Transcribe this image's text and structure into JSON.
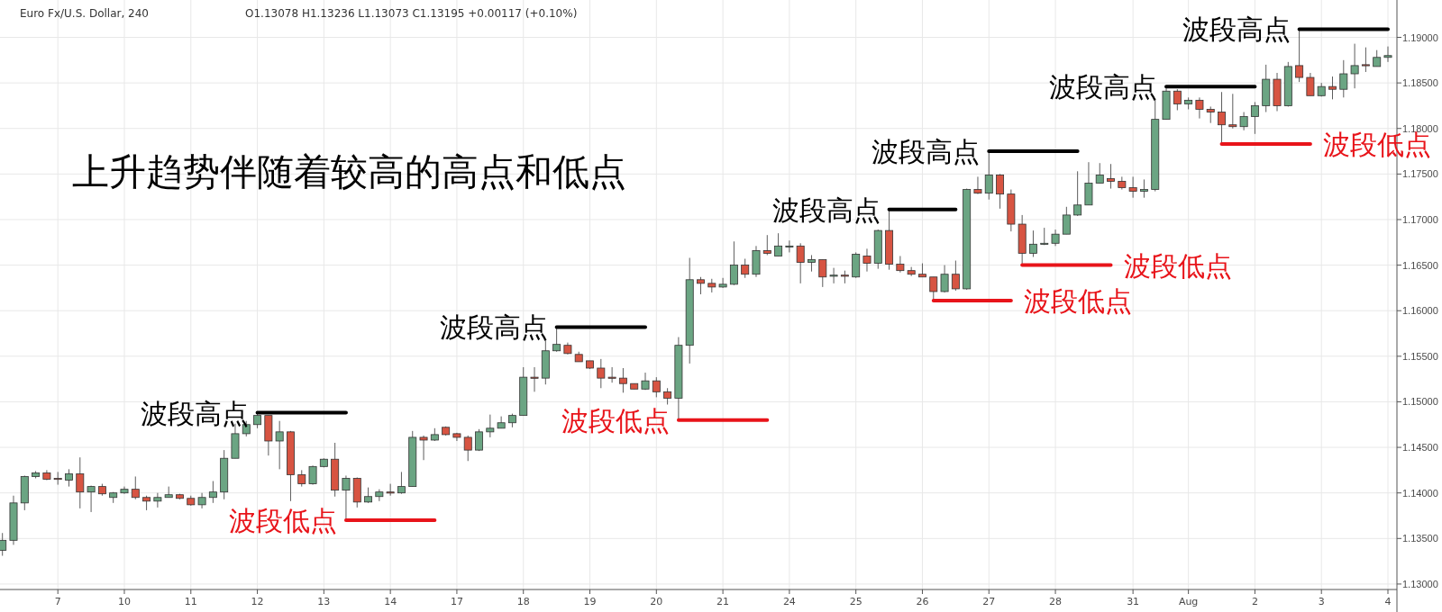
{
  "chart_data": {
    "type": "candlestick",
    "title": "上升趋势伴随着较高的高点和低点",
    "subtitle": "Euro Fx/U.S. Dollar, 240",
    "annotations": [
      "O1.13078 H1.13236 L1.13073 C1.13195 +0.00117 (+0.10%)",
      "波段高点",
      "波段低点",
      "波段高点",
      "波段低点",
      "波段高点",
      "波段低点",
      "波段高点",
      "波段低点",
      "波段高点",
      "波段低点",
      "波段高点"
    ],
    "categories": [
      null,
      null,
      null,
      null,
      null,
      "7",
      null,
      null,
      null,
      null,
      null,
      "10",
      null,
      null,
      null,
      null,
      null,
      "11",
      null,
      null,
      null,
      null,
      null,
      "12",
      null,
      null,
      null,
      null,
      null,
      "13",
      null,
      null,
      null,
      null,
      null,
      "14",
      null,
      null,
      null,
      null,
      null,
      "17",
      null,
      null,
      null,
      null,
      null,
      "18",
      null,
      null,
      null,
      null,
      null,
      "19",
      null,
      null,
      null,
      null,
      null,
      "20",
      null,
      null,
      null,
      null,
      null,
      "21",
      null,
      null,
      null,
      null,
      null,
      "24",
      null,
      null,
      null,
      null,
      null,
      "25",
      null,
      null,
      null,
      null,
      null,
      "26",
      null,
      null,
      null,
      null,
      null,
      "27",
      null,
      null,
      null,
      null,
      null,
      "28",
      null,
      null,
      null,
      null,
      null,
      null,
      "31",
      null,
      null,
      null,
      null,
      "Aug",
      null,
      null,
      null,
      null,
      null,
      "2",
      null,
      null,
      null,
      null,
      null,
      "3",
      null,
      null,
      null,
      null,
      null,
      "4"
    ],
    "ohlc": [
      [
        1.1337,
        1.1356,
        1.1331,
        1.1348
      ],
      [
        1.1348,
        1.1397,
        1.1343,
        1.1389
      ],
      [
        1.1389,
        1.1419,
        1.1381,
        1.1418
      ],
      [
        1.1418,
        1.1424,
        1.1416,
        1.1422
      ],
      [
        1.1422,
        1.1425,
        1.1414,
        1.1415
      ],
      [
        1.1416,
        1.1423,
        1.1409,
        1.1415
      ],
      [
        1.1414,
        1.1426,
        1.1407,
        1.1421
      ],
      [
        1.1421,
        1.1439,
        1.1383,
        1.1401
      ],
      [
        1.1401,
        1.1408,
        1.1379,
        1.1407
      ],
      [
        1.1407,
        1.141,
        1.1397,
        1.1399
      ],
      [
        1.1395,
        1.1401,
        1.1389,
        1.14
      ],
      [
        1.14,
        1.1407,
        1.1399,
        1.1404
      ],
      [
        1.1404,
        1.1418,
        1.1393,
        1.1395
      ],
      [
        1.1395,
        1.1397,
        1.1381,
        1.1391
      ],
      [
        1.1391,
        1.14,
        1.1384,
        1.1395
      ],
      [
        1.1395,
        1.1407,
        1.1395,
        1.1398
      ],
      [
        1.1398,
        1.1399,
        1.1393,
        1.1394
      ],
      [
        1.1394,
        1.1397,
        1.1386,
        1.1387
      ],
      [
        1.1387,
        1.14,
        1.1383,
        1.1395
      ],
      [
        1.1395,
        1.1413,
        1.1389,
        1.1401
      ],
      [
        1.1401,
        1.1447,
        1.1393,
        1.1438
      ],
      [
        1.1438,
        1.1476,
        1.1438,
        1.1465
      ],
      [
        1.1465,
        1.1479,
        1.1462,
        1.1475
      ],
      [
        1.1475,
        1.1488,
        1.1471,
        1.1485
      ],
      [
        1.1485,
        1.1485,
        1.1441,
        1.1457
      ],
      [
        1.1457,
        1.1479,
        1.1426,
        1.1467
      ],
      [
        1.1467,
        1.1468,
        1.1391,
        1.142
      ],
      [
        1.142,
        1.1425,
        1.1407,
        1.141
      ],
      [
        1.141,
        1.143,
        1.1409,
        1.1429
      ],
      [
        1.1429,
        1.1438,
        1.1428,
        1.1437
      ],
      [
        1.1437,
        1.1455,
        1.1396,
        1.1403
      ],
      [
        1.1403,
        1.1419,
        1.137,
        1.1416
      ],
      [
        1.1416,
        1.1417,
        1.1384,
        1.139
      ],
      [
        1.139,
        1.1406,
        1.1389,
        1.1396
      ],
      [
        1.1396,
        1.1404,
        1.1391,
        1.1401
      ],
      [
        1.1401,
        1.141,
        1.1397,
        1.14
      ],
      [
        1.14,
        1.1423,
        1.1399,
        1.1407
      ],
      [
        1.1407,
        1.1468,
        1.1407,
        1.1461
      ],
      [
        1.1461,
        1.1463,
        1.1436,
        1.1458
      ],
      [
        1.1458,
        1.1471,
        1.1457,
        1.1464
      ],
      [
        1.1472,
        1.1473,
        1.1463,
        1.1464
      ],
      [
        1.1465,
        1.1466,
        1.1457,
        1.1461
      ],
      [
        1.1461,
        1.1463,
        1.1435,
        1.1447
      ],
      [
        1.1447,
        1.147,
        1.1446,
        1.1467
      ],
      [
        1.1467,
        1.1486,
        1.1461,
        1.1471
      ],
      [
        1.1471,
        1.1484,
        1.1471,
        1.1477
      ],
      [
        1.1477,
        1.1487,
        1.1472,
        1.1485
      ],
      [
        1.1485,
        1.1538,
        1.1485,
        1.1527
      ],
      [
        1.1527,
        1.1538,
        1.1511,
        1.1526
      ],
      [
        1.1526,
        1.1567,
        1.1519,
        1.1556
      ],
      [
        1.1556,
        1.1582,
        1.1555,
        1.1563
      ],
      [
        1.1562,
        1.1565,
        1.1552,
        1.1553
      ],
      [
        1.1552,
        1.1555,
        1.1544,
        1.1544
      ],
      [
        1.1545,
        1.1545,
        1.1536,
        1.1537
      ],
      [
        1.1537,
        1.1547,
        1.1515,
        1.1526
      ],
      [
        1.1527,
        1.1538,
        1.1521,
        1.1526
      ],
      [
        1.1526,
        1.1537,
        1.151,
        1.152
      ],
      [
        1.152,
        1.152,
        1.1514,
        1.1514
      ],
      [
        1.1514,
        1.1532,
        1.1513,
        1.1523
      ],
      [
        1.1523,
        1.1527,
        1.1505,
        1.1511
      ],
      [
        1.1511,
        1.1515,
        1.1497,
        1.1504
      ],
      [
        1.1504,
        1.1571,
        1.148,
        1.1562
      ],
      [
        1.1562,
        1.1658,
        1.1542,
        1.1634
      ],
      [
        1.1634,
        1.1637,
        1.1618,
        1.163
      ],
      [
        1.163,
        1.1635,
        1.162,
        1.1626
      ],
      [
        1.1626,
        1.1636,
        1.1625,
        1.1629
      ],
      [
        1.1629,
        1.1676,
        1.1628,
        1.165
      ],
      [
        1.165,
        1.1657,
        1.1636,
        1.164
      ],
      [
        1.164,
        1.1671,
        1.1637,
        1.1666
      ],
      [
        1.1666,
        1.1683,
        1.1661,
        1.1663
      ],
      [
        1.166,
        1.1685,
        1.166,
        1.1671
      ],
      [
        1.167,
        1.1677,
        1.1664,
        1.1671
      ],
      [
        1.1671,
        1.1674,
        1.163,
        1.1653
      ],
      [
        1.1653,
        1.1661,
        1.1643,
        1.1656
      ],
      [
        1.1656,
        1.1656,
        1.1626,
        1.1637
      ],
      [
        1.1638,
        1.1647,
        1.163,
        1.1639
      ],
      [
        1.1639,
        1.1644,
        1.163,
        1.1638
      ],
      [
        1.1637,
        1.1664,
        1.1636,
        1.1662
      ],
      [
        1.166,
        1.1668,
        1.1643,
        1.1652
      ],
      [
        1.1652,
        1.1689,
        1.1646,
        1.1688
      ],
      [
        1.1688,
        1.1711,
        1.1645,
        1.1651
      ],
      [
        1.1651,
        1.166,
        1.1642,
        1.1644
      ],
      [
        1.1644,
        1.1648,
        1.1638,
        1.164
      ],
      [
        1.164,
        1.1652,
        1.1637,
        1.1637
      ],
      [
        1.1637,
        1.1637,
        1.1611,
        1.1621
      ],
      [
        1.1621,
        1.165,
        1.162,
        1.164
      ],
      [
        1.164,
        1.1655,
        1.1622,
        1.1624
      ],
      [
        1.1624,
        1.1734,
        1.1623,
        1.1733
      ],
      [
        1.1733,
        1.1747,
        1.1728,
        1.1729
      ],
      [
        1.1729,
        1.1775,
        1.1722,
        1.1749
      ],
      [
        1.1749,
        1.175,
        1.1712,
        1.1728
      ],
      [
        1.1728,
        1.1733,
        1.1687,
        1.1695
      ],
      [
        1.1695,
        1.1705,
        1.165,
        1.1663
      ],
      [
        1.1663,
        1.1688,
        1.1659,
        1.1673
      ],
      [
        1.1673,
        1.1691,
        1.1672,
        1.1674
      ],
      [
        1.1674,
        1.1689,
        1.1671,
        1.1684
      ],
      [
        1.1684,
        1.1714,
        1.1684,
        1.1705
      ],
      [
        1.1705,
        1.1753,
        1.1704,
        1.1716
      ],
      [
        1.1716,
        1.1763,
        1.1716,
        1.174
      ],
      [
        1.174,
        1.1762,
        1.174,
        1.1749
      ],
      [
        1.1745,
        1.1761,
        1.1734,
        1.1742
      ],
      [
        1.1742,
        1.1747,
        1.1733,
        1.1735
      ],
      [
        1.1735,
        1.1747,
        1.1724,
        1.1731
      ],
      [
        1.1731,
        1.1744,
        1.1724,
        1.1733
      ],
      [
        1.1733,
        1.1833,
        1.1731,
        1.181
      ],
      [
        1.181,
        1.1846,
        1.181,
        1.1841
      ],
      [
        1.1841,
        1.1843,
        1.182,
        1.1827
      ],
      [
        1.1827,
        1.1834,
        1.1821,
        1.1831
      ],
      [
        1.1831,
        1.1834,
        1.1811,
        1.1821
      ],
      [
        1.1821,
        1.1824,
        1.1806,
        1.1818
      ],
      [
        1.1818,
        1.184,
        1.1783,
        1.1804
      ],
      [
        1.1804,
        1.1838,
        1.18,
        1.1802
      ],
      [
        1.1802,
        1.1818,
        1.1798,
        1.1813
      ],
      [
        1.1813,
        1.1829,
        1.1794,
        1.1825
      ],
      [
        1.1825,
        1.187,
        1.1818,
        1.1854
      ],
      [
        1.1854,
        1.1861,
        1.1819,
        1.1825
      ],
      [
        1.1825,
        1.1873,
        1.1824,
        1.1868
      ],
      [
        1.1869,
        1.1909,
        1.1851,
        1.1856
      ],
      [
        1.1856,
        1.1861,
        1.1836,
        1.1836
      ],
      [
        1.1836,
        1.185,
        1.1835,
        1.1846
      ],
      [
        1.1846,
        1.1857,
        1.1832,
        1.1843
      ],
      [
        1.1843,
        1.1875,
        1.1834,
        1.186
      ],
      [
        1.186,
        1.1893,
        1.1844,
        1.1869
      ],
      [
        1.187,
        1.1889,
        1.1862,
        1.1869
      ],
      [
        1.1868,
        1.1886,
        1.1868,
        1.1878
      ],
      [
        1.1878,
        1.189,
        1.1873,
        1.188
      ]
    ],
    "colors": [
      "#6ba583",
      "#6ba583",
      "#6ba583",
      "#6ba583",
      "#d75442",
      "#d75442",
      "#6ba583",
      "#d75442",
      "#6ba583",
      "#d75442",
      "#6ba583",
      "#6ba583",
      "#d75442",
      "#d75442",
      "#6ba583",
      "#6ba583",
      "#d75442",
      "#d75442",
      "#6ba583",
      "#6ba583",
      "#6ba583",
      "#6ba583",
      "#6ba583",
      "#6ba583",
      "#d75442",
      "#6ba583",
      "#d75442",
      "#d75442",
      "#6ba583",
      "#6ba583",
      "#d75442",
      "#6ba583",
      "#d75442",
      "#6ba583",
      "#6ba583",
      "#d75442",
      "#6ba583",
      "#6ba583",
      "#d75442",
      "#6ba583",
      "#d75442",
      "#d75442",
      "#d75442",
      "#6ba583",
      "#6ba583",
      "#6ba583",
      "#6ba583",
      "#6ba583",
      "#d75442",
      "#6ba583",
      "#6ba583",
      "#d75442",
      "#d75442",
      "#d75442",
      "#d75442",
      "#d75442",
      "#d75442",
      "#d75442",
      "#6ba583",
      "#d75442",
      "#d75442",
      "#6ba583",
      "#6ba583",
      "#d75442",
      "#d75442",
      "#6ba583",
      "#6ba583",
      "#d75442",
      "#6ba583",
      "#d75442",
      "#6ba583",
      "#6ba583",
      "#d75442",
      "#6ba583",
      "#d75442",
      "#6ba583",
      "#d75442",
      "#6ba583",
      "#d75442",
      "#6ba583",
      "#d75442",
      "#d75442",
      "#d75442",
      "#d75442",
      "#d75442",
      "#6ba583",
      "#d75442",
      "#6ba583",
      "#d75442",
      "#6ba583",
      "#d75442",
      "#d75442",
      "#d75442",
      "#6ba583",
      "#6ba583",
      "#6ba583",
      "#6ba583",
      "#6ba583",
      "#6ba583",
      "#6ba583",
      "#d75442",
      "#d75442",
      "#d75442",
      "#6ba583",
      "#6ba583",
      "#6ba583",
      "#d75442",
      "#6ba583",
      "#d75442",
      "#d75442",
      "#d75442",
      "#d75442",
      "#6ba583",
      "#6ba583",
      "#6ba583",
      "#d75442",
      "#6ba583",
      "#d75442",
      "#d75442",
      "#6ba583",
      "#d75442",
      "#6ba583",
      "#6ba583",
      "#d75442",
      "#6ba583",
      "#6ba583"
    ],
    "series": [
      {
        "type": "line",
        "color": "#000000",
        "values": [
          null,
          null,
          null,
          null,
          null,
          null,
          null,
          null,
          null,
          null,
          null,
          null,
          null,
          null,
          null,
          null,
          null,
          null,
          null,
          null,
          null,
          null,
          null,
          1.1488,
          1.1488,
          1.1488,
          1.1488,
          1.1488,
          1.1488,
          1.1488,
          1.1488,
          1.1488,
          null,
          null,
          null,
          null,
          null,
          null,
          null,
          null,
          null,
          null,
          null,
          null,
          null,
          null,
          null,
          null,
          null,
          null,
          null,
          null,
          null,
          null,
          null,
          null,
          null,
          null,
          null,
          null,
          null,
          null,
          null,
          null,
          null,
          null,
          null,
          null,
          null,
          null,
          null,
          null,
          null,
          null,
          null,
          null,
          null,
          null,
          null,
          null,
          1.1711,
          1.1711,
          1.1711,
          1.1711,
          1.1711,
          1.1711,
          1.1711,
          null,
          null,
          null,
          null,
          null,
          null,
          null,
          null,
          null,
          null,
          null,
          null,
          null,
          null,
          null,
          null,
          null,
          null,
          1.1846,
          1.1846,
          1.1846,
          1.1846,
          1.1846,
          1.1846,
          1.1846,
          1.1846,
          1.1846,
          null,
          null,
          null,
          null,
          null,
          null,
          null,
          null,
          null,
          null,
          null,
          null
        ]
      },
      {
        "type": "line",
        "color": "#000000",
        "values": [
          null,
          null,
          null,
          null,
          null,
          null,
          null,
          null,
          null,
          null,
          null,
          null,
          null,
          null,
          null,
          null,
          null,
          null,
          null,
          null,
          null,
          null,
          null,
          null,
          null,
          null,
          null,
          null,
          null,
          null,
          null,
          null,
          null,
          null,
          null,
          null,
          null,
          null,
          null,
          null,
          null,
          null,
          null,
          null,
          null,
          null,
          null,
          null,
          null,
          null,
          1.1582,
          1.1582,
          1.1582,
          1.1582,
          1.1582,
          1.1582,
          1.1582,
          1.1582,
          1.1582,
          null,
          null,
          null,
          null,
          null,
          null,
          null,
          null,
          null,
          null,
          null,
          null,
          null,
          null,
          null,
          null,
          null,
          null,
          null,
          null,
          null,
          null,
          null,
          null,
          null,
          null,
          null,
          null,
          null,
          null,
          1.1775,
          1.1775,
          1.1775,
          1.1775,
          1.1775,
          1.1775,
          1.1775,
          1.1775,
          1.1775,
          null,
          null,
          null,
          null,
          null,
          null,
          null,
          null,
          null,
          null,
          null,
          null,
          null,
          null,
          null,
          null,
          null,
          null,
          null,
          1.1909,
          1.1909,
          1.1909,
          1.1909,
          1.1909,
          1.1909,
          1.1909,
          1.1909,
          1.1909
        ]
      },
      {
        "type": "line",
        "color": "#e8141a",
        "values": [
          null,
          null,
          null,
          null,
          null,
          null,
          null,
          null,
          null,
          null,
          null,
          null,
          null,
          null,
          null,
          null,
          null,
          null,
          null,
          null,
          null,
          null,
          null,
          null,
          null,
          null,
          null,
          null,
          null,
          null,
          null,
          1.137,
          1.137,
          1.137,
          1.137,
          1.137,
          1.137,
          1.137,
          1.137,
          1.137,
          null,
          null,
          null,
          null,
          null,
          null,
          null,
          null,
          null,
          null,
          null,
          null,
          null,
          null,
          null,
          null,
          null,
          null,
          null,
          null,
          null,
          null,
          null,
          null,
          null,
          null,
          null,
          null,
          null,
          null,
          null,
          null,
          null,
          null,
          null,
          null,
          null,
          null,
          null,
          null,
          null,
          null,
          null,
          null,
          1.1611,
          1.1611,
          1.1611,
          1.1611,
          1.1611,
          1.1611,
          1.1611,
          1.1611,
          null,
          null,
          null,
          null,
          null,
          null,
          null,
          null,
          null,
          null,
          null,
          null,
          null,
          null,
          null,
          null,
          null,
          null,
          1.1783,
          1.1783,
          1.1783,
          1.1783,
          1.1783,
          1.1783,
          1.1783,
          1.1783,
          1.1783,
          null,
          null,
          null,
          null,
          null,
          null,
          null
        ]
      },
      {
        "type": "line",
        "color": "#e8141a",
        "values": [
          null,
          null,
          null,
          null,
          null,
          null,
          null,
          null,
          null,
          null,
          null,
          null,
          null,
          null,
          null,
          null,
          null,
          null,
          null,
          null,
          null,
          null,
          null,
          null,
          null,
          null,
          null,
          null,
          null,
          null,
          null,
          null,
          null,
          null,
          null,
          null,
          null,
          null,
          null,
          null,
          null,
          null,
          null,
          null,
          null,
          null,
          null,
          null,
          null,
          null,
          null,
          null,
          null,
          null,
          null,
          null,
          null,
          null,
          null,
          null,
          null,
          1.148,
          1.148,
          1.148,
          1.148,
          1.148,
          1.148,
          1.148,
          1.148,
          1.148,
          null,
          null,
          null,
          null,
          null,
          null,
          null,
          null,
          null,
          null,
          null,
          null,
          null,
          null,
          null,
          null,
          null,
          null,
          null,
          null,
          null,
          null,
          1.165,
          1.165,
          1.165,
          1.165,
          1.165,
          1.165,
          1.165,
          1.165,
          1.165,
          null,
          null,
          null,
          null,
          null,
          null,
          null,
          null,
          null,
          null,
          null,
          null,
          null,
          null,
          null,
          null,
          null,
          null,
          null,
          null,
          null,
          null,
          null,
          null,
          null
        ]
      }
    ],
    "ylim": [
      1.1294,
      1.1941
    ],
    "yticks": [
      {
        "value": 1.13,
        "label": "1.13000"
      },
      {
        "value": 1.135,
        "label": "1.13500"
      },
      {
        "value": 1.14,
        "label": "1.14000"
      },
      {
        "value": 1.145,
        "label": "1.14500"
      },
      {
        "value": 1.15,
        "label": "1.15000"
      },
      {
        "value": 1.155,
        "label": "1.15500"
      },
      {
        "value": 1.16,
        "label": "1.16000"
      },
      {
        "value": 1.165,
        "label": "1.16500"
      },
      {
        "value": 1.17,
        "label": "1.17000"
      },
      {
        "value": 1.175,
        "label": "1.17500"
      },
      {
        "value": 1.18,
        "label": "1.18000"
      },
      {
        "value": 1.185,
        "label": "1.18500"
      },
      {
        "value": 1.19,
        "label": "1.19000"
      }
    ],
    "grid": true
  }
}
